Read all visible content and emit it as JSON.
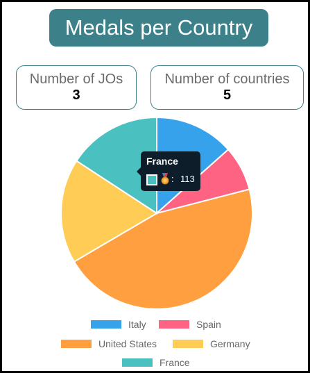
{
  "title": "Medals per Country",
  "stats": {
    "jos_label": "Number of JOs",
    "jos_value": "3",
    "countries_label": "Number of countries",
    "countries_value": "5"
  },
  "chart_data": {
    "type": "pie",
    "categories": [
      "Italy",
      "Spain",
      "United States",
      "Germany",
      "France"
    ],
    "values": [
      96,
      54,
      326,
      126,
      113
    ],
    "colors": [
      "#36a2eb",
      "#ff6384",
      "#ff9f40",
      "#ffcd56",
      "#4bc0c0"
    ],
    "legend": "bottom",
    "tooltip": {
      "title": "France",
      "icon": "medal-icon",
      "separator": ":",
      "value": "113"
    }
  }
}
